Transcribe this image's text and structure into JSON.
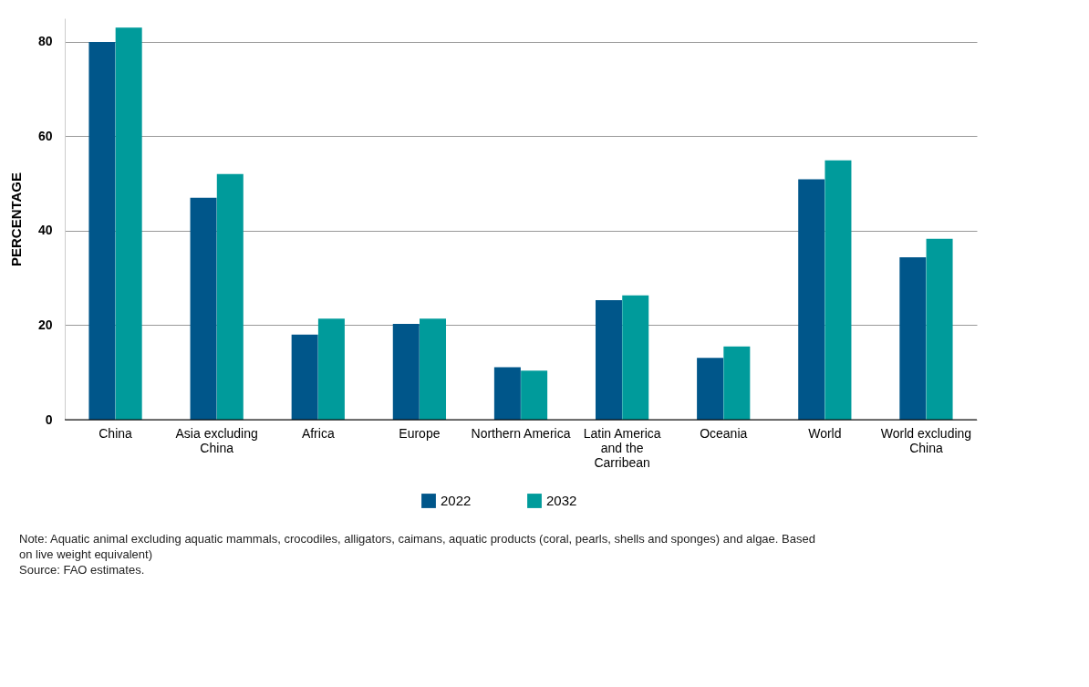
{
  "chart_data": {
    "type": "bar",
    "ylabel": "PERCENTAGE",
    "categories": [
      "China",
      "Asia excluding China",
      "Africa",
      "Europe",
      "Northern America",
      "Latin America and the Carribean",
      "Oceania",
      "World",
      "World excluding China"
    ],
    "series": [
      {
        "name": "2022",
        "color": "#00568a",
        "values": [
          80.0,
          47.0,
          18.0,
          20.3,
          11.1,
          25.3,
          13.1,
          50.9,
          34.4
        ]
      },
      {
        "name": "2032",
        "color": "#009b9b",
        "values": [
          83.0,
          52.0,
          21.4,
          21.4,
          10.4,
          26.3,
          15.5,
          54.9,
          38.3
        ]
      }
    ],
    "ylim": [
      0,
      85
    ],
    "yticks": [
      0,
      20,
      40,
      60,
      80
    ],
    "grid": "y",
    "legend": "bottom",
    "annotations": [
      "Note: Aquatic animal excluding aquatic mammals, crocodiles, alligators, caimans, aquatic products (coral, pearls, shells and sponges) and algae. Based on live weight equivalent)",
      "Source: FAO estimates."
    ]
  }
}
